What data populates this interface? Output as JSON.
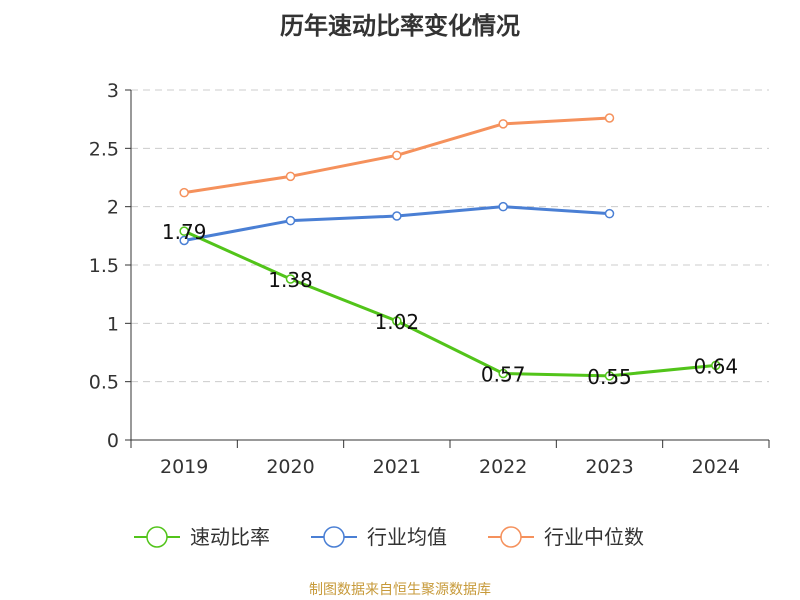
{
  "title": "历年速动比率变化情况",
  "source": "制图数据来自恒生聚源数据库",
  "chart_data": {
    "type": "line",
    "title": "历年速动比率变化情况",
    "categories": [
      "2019",
      "2020",
      "2021",
      "2022",
      "2023",
      "2024"
    ],
    "ylim": [
      0,
      3
    ],
    "yticks": [
      "0",
      "0.5",
      "1",
      "1.5",
      "2",
      "2.5",
      "3"
    ],
    "grid": true,
    "legend_position": "bottom",
    "series": [
      {
        "name": "速动比率",
        "color": "#52c41a",
        "values": [
          1.79,
          1.38,
          1.02,
          0.57,
          0.55,
          0.64
        ],
        "labels": [
          "1.79",
          "1.38",
          "1.02",
          "0.57",
          "0.55",
          "0.64"
        ]
      },
      {
        "name": "行业均值",
        "color": "#4a7fd4",
        "values": [
          1.71,
          1.88,
          1.92,
          2.0,
          1.94,
          null
        ]
      },
      {
        "name": "行业中位数",
        "color": "#f5915c",
        "values": [
          2.12,
          2.26,
          2.44,
          2.71,
          2.76,
          null
        ]
      }
    ]
  }
}
